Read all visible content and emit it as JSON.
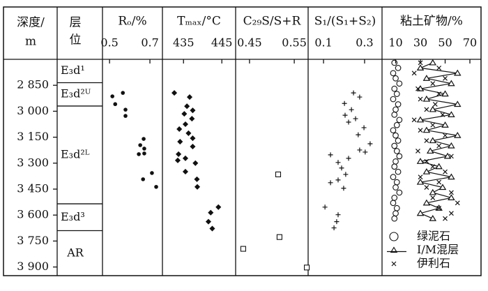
{
  "chart_data": {
    "type": "well-log",
    "depth_label": [
      "深度/",
      "m"
    ],
    "layer_label": [
      "层",
      "位"
    ],
    "ylim": [
      2700,
      3950
    ],
    "yticks": [
      {
        "value": 2850,
        "label": "2 850"
      },
      {
        "value": 3000,
        "label": "3 000"
      },
      {
        "value": 3150,
        "label": "3 150"
      },
      {
        "value": 3300,
        "label": "3 300"
      },
      {
        "value": 3450,
        "label": "3 450"
      },
      {
        "value": 3600,
        "label": "3 600"
      },
      {
        "value": 3750,
        "label": "3 750"
      },
      {
        "value": 3900,
        "label": "3 900"
      }
    ],
    "layers": [
      "E₃d¹",
      "E₃d²ᵁ",
      "E₃d²ᴸ",
      "E₃d³",
      "AR"
    ],
    "layer_bounds": [
      2835,
      2970,
      3535,
      3690
    ],
    "panels": [
      {
        "type": "scatter",
        "title": "Rₒ/%",
        "marker": "dot",
        "xlim": [
          0.465,
          0.762
        ],
        "xticks": [
          0.5,
          0.7
        ],
        "x": [
          0.566,
          0.514,
          0.528,
          0.579,
          0.579,
          0.669,
          0.652,
          0.672,
          0.645,
          0.672,
          0.71,
          0.666,
          0.731
        ],
        "y": [
          2894,
          2914,
          2959,
          2991,
          3027,
          3160,
          3196,
          3216,
          3248,
          3244,
          3357,
          3393,
          3437
        ]
      },
      {
        "type": "scatter",
        "title": "Tₘₐₓ/°C",
        "marker": "diamond",
        "xlim": [
          429.5,
          448.6
        ],
        "xticks": [
          435,
          445
        ],
        "x": [
          432.6,
          436.6,
          435.9,
          437.4,
          435.2,
          437.2,
          435.5,
          433.9,
          436.3,
          437.4,
          434.1,
          437.4,
          433.7,
          435.5,
          433.5,
          438.1,
          435.5,
          438.5,
          438.6,
          444.1,
          442.1,
          441.5,
          442.5
        ],
        "y": [
          2894,
          2918,
          2971,
          2995,
          3015,
          3043,
          3075,
          3103,
          3127,
          3156,
          3176,
          3204,
          3248,
          3272,
          3284,
          3300,
          3349,
          3393,
          3437,
          3554,
          3586,
          3638,
          3678
        ]
      },
      {
        "type": "scatter",
        "title": "C₂₉S/S+R",
        "marker": "square",
        "xlim": [
          0.419,
          0.581
        ],
        "xticks": [
          0.45,
          0.55
        ],
        "x": [
          0.514,
          0.517,
          0.436,
          0.578
        ],
        "y": [
          3365,
          3727,
          3795,
          3903
        ]
      },
      {
        "type": "scatter",
        "title": "S₁/(S₁+S₂)",
        "marker": "plus",
        "xlim": [
          0.025,
          0.385
        ],
        "xticks": [
          0.1,
          0.3
        ],
        "x": [
          0.246,
          0.276,
          0.202,
          0.236,
          0.205,
          0.256,
          0.222,
          0.297,
          0.269,
          0.327,
          0.276,
          0.303,
          0.134,
          0.222,
          0.171,
          0.188,
          0.208,
          0.171,
          0.134,
          0.198,
          0.107,
          0.171,
          0.164,
          0.151
        ],
        "y": [
          2894,
          2918,
          2955,
          2991,
          3023,
          3043,
          3063,
          3095,
          3136,
          3188,
          3224,
          3236,
          3252,
          3272,
          3296,
          3328,
          3365,
          3397,
          3413,
          3445,
          3554,
          3598,
          3638,
          3674
        ]
      },
      {
        "type": "scatter",
        "title": "粘土矿物/%",
        "xlim": [
          -1,
          79
        ],
        "xticks": [
          10,
          30,
          50,
          70
        ],
        "y": [
          2720,
          2750,
          2780,
          2810,
          2840,
          2870,
          2900,
          2930,
          2960,
          2990,
          3020,
          3050,
          3080,
          3110,
          3140,
          3170,
          3200,
          3230,
          3260,
          3290,
          3320,
          3350,
          3380,
          3410,
          3440,
          3470,
          3500,
          3530,
          3560,
          3590,
          3620
        ],
        "series": [
          {
            "name": "绿泥石",
            "marker": "circle",
            "values": [
              9,
              12,
              8,
              10,
              13,
              9,
              11,
              8,
              12,
              10,
              9,
              13,
              11,
              8,
              10,
              12,
              9,
              11,
              13,
              10,
              9,
              12,
              8,
              11,
              10,
              13,
              9,
              8,
              11,
              10,
              9
            ]
          },
          {
            "name": "I/M混层",
            "marker": "triangle",
            "line": true,
            "values": [
              40,
              30,
              60,
              35,
              55,
              30,
              50,
              35,
              60,
              40,
              55,
              30,
              50,
              35,
              60,
              40,
              55,
              38,
              52,
              30,
              45,
              35,
              55,
              30,
              48,
              40,
              55,
              35,
              45,
              30,
              40
            ]
          },
          {
            "name": "伊利石",
            "marker": "cross",
            "values": [
              30,
              45,
              25,
              50,
              40,
              28,
              45,
              30,
              42,
              35,
              48,
              25,
              40,
              30,
              50,
              35,
              45,
              28,
              55,
              35,
              40,
              50,
              30,
              45,
              35,
              55,
              40,
              60,
              45,
              55,
              50
            ]
          }
        ]
      }
    ]
  }
}
